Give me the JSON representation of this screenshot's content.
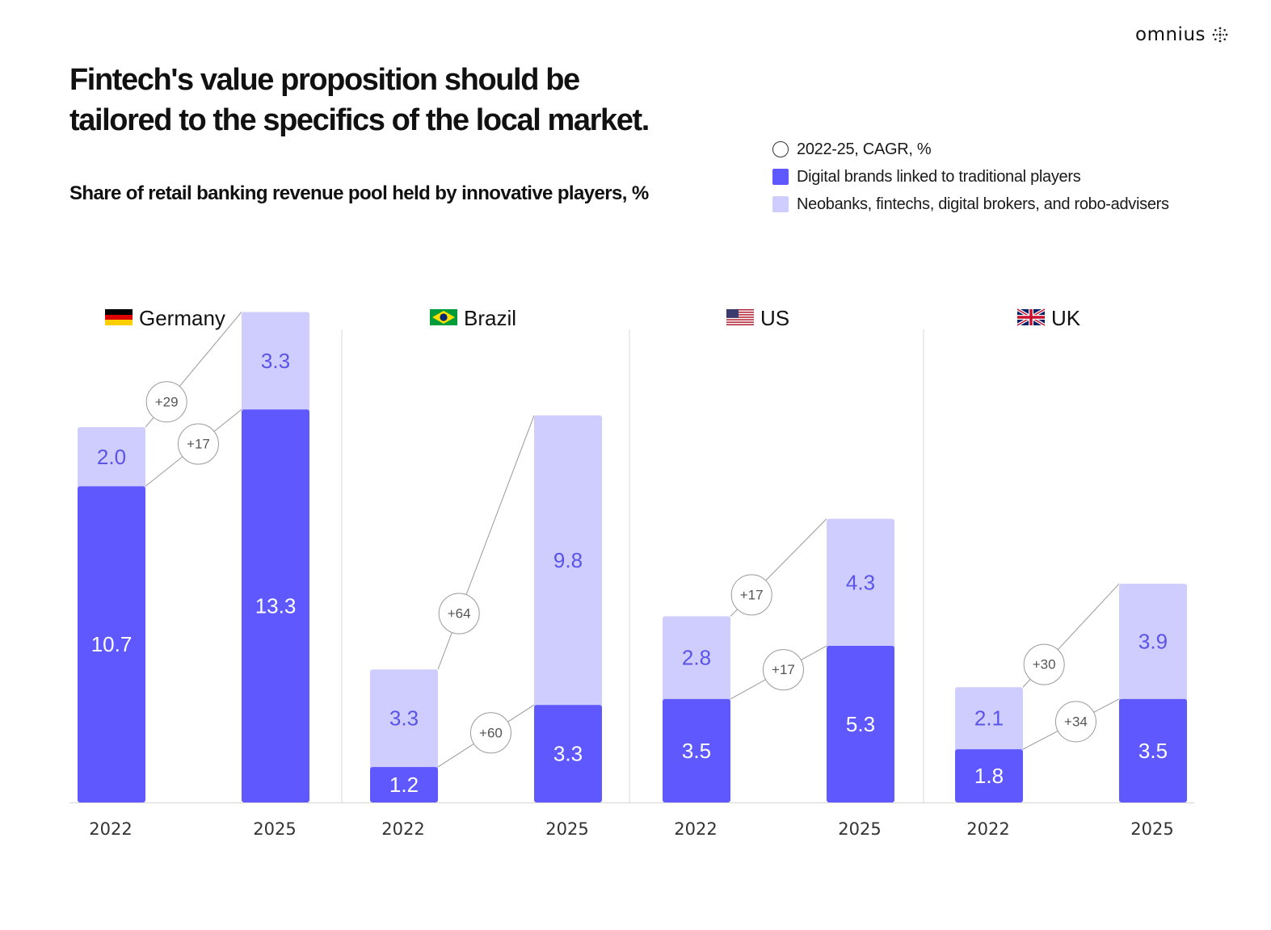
{
  "brand": {
    "logo_text": "omnius"
  },
  "headline": {
    "line1": "Fintech's value proposition should be",
    "line2": "tailored to the specifics of the local market."
  },
  "colors": {
    "digital": "#5F58FF",
    "neo": "#CFCDFE",
    "value_on_light": "#5A54E8"
  },
  "chart_data": {
    "type": "bar",
    "stacked": true,
    "title": "Share of retail banking revenue pool held by innovative players, %",
    "legend": [
      {
        "key": "cagr",
        "label": "2022-25, CAGR, %"
      },
      {
        "key": "digital",
        "label": "Digital brands linked to traditional players"
      },
      {
        "key": "neo",
        "label": "Neobanks, fintechs, digital brokers, and robo-advisers"
      }
    ],
    "groups": [
      {
        "country": "Germany",
        "flag": "germany",
        "bars": [
          {
            "year": "2022",
            "digital": 10.7,
            "neo": 2.0
          },
          {
            "year": "2025",
            "digital": 13.3,
            "neo": 3.3
          }
        ],
        "cagr": {
          "neo": "+29",
          "digital": "+17"
        }
      },
      {
        "country": "Brazil",
        "flag": "brazil",
        "bars": [
          {
            "year": "2022",
            "digital": 1.2,
            "neo": 3.3
          },
          {
            "year": "2025",
            "digital": 3.3,
            "neo": 9.8
          }
        ],
        "cagr": {
          "neo": "+64",
          "digital": "+60"
        }
      },
      {
        "country": "US",
        "flag": "us",
        "bars": [
          {
            "year": "2022",
            "digital": 3.5,
            "neo": 2.8
          },
          {
            "year": "2025",
            "digital": 5.3,
            "neo": 4.3
          }
        ],
        "cagr": {
          "neo": "+17",
          "digital": "+17"
        }
      },
      {
        "country": "UK",
        "flag": "uk",
        "bars": [
          {
            "year": "2022",
            "digital": 1.8,
            "neo": 2.1
          },
          {
            "year": "2025",
            "digital": 3.5,
            "neo": 3.9
          }
        ],
        "cagr": {
          "neo": "+30",
          "digital": "+34"
        }
      }
    ]
  }
}
